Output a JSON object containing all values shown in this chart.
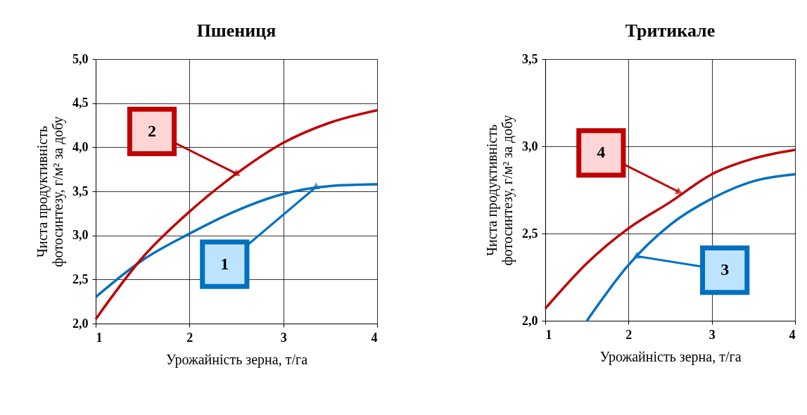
{
  "chart_data": [
    {
      "type": "line",
      "title": "Пшениця",
      "xlabel": "Урожайність зерна, т/га",
      "ylabel": "Чиста продуктивність\nфотосинтезу, г/м² за добу",
      "x": [
        1,
        1.5,
        2,
        2.5,
        3,
        3.5,
        4
      ],
      "xlim": [
        1,
        4
      ],
      "xticks": [
        1,
        2,
        3,
        4
      ],
      "ylim": [
        2.0,
        5.0
      ],
      "yticks": [
        {
          "value": 2.0,
          "label": "2,0"
        },
        {
          "value": 2.5,
          "label": "2,5"
        },
        {
          "value": 3.0,
          "label": "3,0"
        },
        {
          "value": 3.5,
          "label": "3,5"
        },
        {
          "value": 4.0,
          "label": "4,0"
        },
        {
          "value": 4.5,
          "label": "4,5"
        },
        {
          "value": 5.0,
          "label": "5,0"
        }
      ],
      "grid": true,
      "series": [
        {
          "color": "#0070c0",
          "values": [
            2.3,
            2.72,
            3.02,
            3.28,
            3.47,
            3.56,
            3.58
          ]
        },
        {
          "color": "#c00000",
          "values": [
            2.05,
            2.75,
            3.27,
            3.7,
            4.05,
            4.28,
            4.42
          ]
        }
      ],
      "annotations": [
        {
          "text": "1",
          "x": 3.35,
          "y": 3.55
        },
        {
          "text": "2",
          "x": 2.5,
          "y": 3.7
        }
      ]
    },
    {
      "type": "line",
      "title": "Тритикале",
      "xlabel": "Урожайність зерна, т/га",
      "ylabel": "Чиста продуктивність\nфотосинтезу, г/м² за добу",
      "x": [
        1,
        1.5,
        2,
        2.5,
        3,
        3.5,
        4
      ],
      "xlim": [
        1,
        4
      ],
      "xticks": [
        1,
        2,
        3,
        4
      ],
      "ylim": [
        2.0,
        3.5
      ],
      "yticks": [
        {
          "value": 2.0,
          "label": "2,0"
        },
        {
          "value": 2.5,
          "label": "2,5"
        },
        {
          "value": 3.0,
          "label": "3,0"
        },
        {
          "value": 3.5,
          "label": "3,5"
        }
      ],
      "grid": true,
      "series": [
        {
          "color": "#0070c0",
          "values": [
            null,
            2.0,
            2.32,
            2.55,
            2.7,
            2.8,
            2.84
          ]
        },
        {
          "color": "#c00000",
          "values": [
            2.07,
            2.33,
            2.53,
            2.68,
            2.84,
            2.93,
            2.98
          ]
        }
      ],
      "annotations": [
        {
          "text": "3",
          "x": 2.1,
          "y": 2.37
        },
        {
          "text": "4",
          "x": 2.6,
          "y": 2.74
        }
      ]
    }
  ]
}
